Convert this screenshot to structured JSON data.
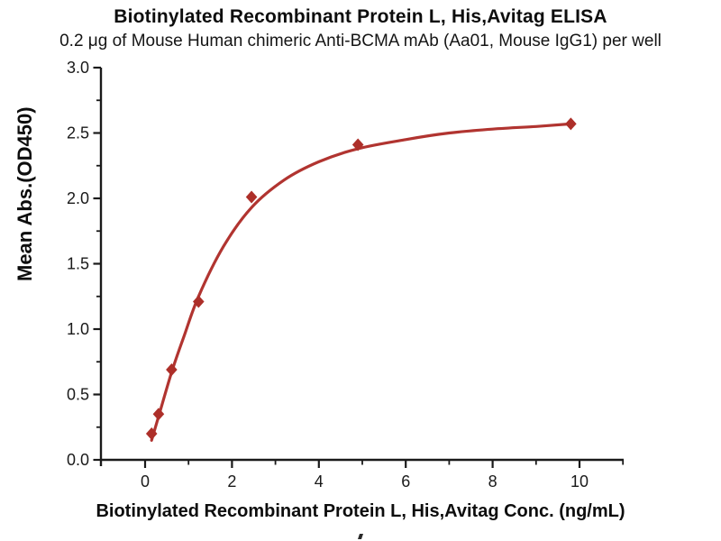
{
  "header": {
    "title": "Biotinylated Recombinant Protein L, His,Avitag ELISA",
    "subtitle": "0.2 μg of Mouse Human chimeric Anti-BCMA mAb (Aa01, Mouse IgG1) per well"
  },
  "chart_data": {
    "type": "scatter",
    "curve": "4PL sigmoidal fit line through points",
    "title": "Biotinylated Recombinant Protein L, His,Avitag ELISA",
    "subtitle": "0.2 μg of Mouse Human chimeric Anti-BCMA mAb (Aa01, Mouse IgG1) per well",
    "xlabel": "Biotinylated Recombinant Protein L, His,Avitag Conc. (ng/mL)",
    "ylabel": "Mean Abs.(OD450)",
    "x": [
      0.15,
      0.31,
      0.61,
      1.23,
      2.45,
      4.9,
      9.8
    ],
    "y": [
      0.2,
      0.35,
      0.69,
      1.21,
      2.01,
      2.41,
      2.57
    ],
    "curve_points": [
      [
        0.15,
        0.15
      ],
      [
        0.31,
        0.33
      ],
      [
        0.61,
        0.67
      ],
      [
        0.9,
        0.95
      ],
      [
        1.23,
        1.25
      ],
      [
        1.8,
        1.63
      ],
      [
        2.45,
        1.93
      ],
      [
        3.2,
        2.14
      ],
      [
        4.0,
        2.28
      ],
      [
        4.9,
        2.38
      ],
      [
        6.0,
        2.45
      ],
      [
        7.0,
        2.5
      ],
      [
        8.0,
        2.53
      ],
      [
        9.0,
        2.55
      ],
      [
        9.8,
        2.57
      ]
    ],
    "xlim": [
      -1,
      11
    ],
    "ylim": [
      0,
      3
    ],
    "x_major_ticks": [
      0,
      2,
      4,
      6,
      8,
      10
    ],
    "x_minor_ticks": [
      1,
      3,
      5,
      7,
      9,
      11
    ],
    "y_major_ticks": [
      0.0,
      0.5,
      1.0,
      1.5,
      2.0,
      2.5,
      3.0
    ],
    "y_minor_ticks": [
      0.25,
      0.75,
      1.25,
      1.75,
      2.25,
      2.75
    ],
    "grid": false,
    "legend": false,
    "marker_shape": "diamond",
    "colors": {
      "series": "#b13430",
      "marker": "#ad2f29",
      "axis": "#1a1a1a",
      "text": "#111111"
    }
  },
  "icons": {
    "bottom_partial_glyph": "top of a character cropped at the bottom edge"
  }
}
